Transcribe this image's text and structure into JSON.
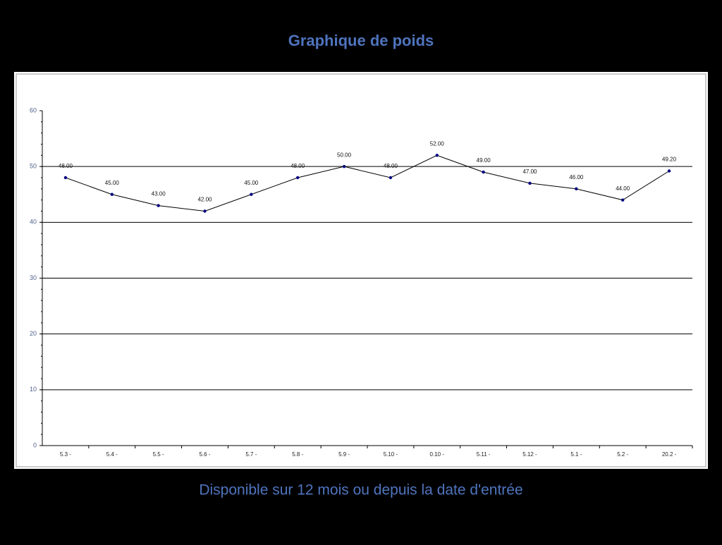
{
  "chart_data": {
    "type": "line",
    "title": "Graphique de poids",
    "subtitle": "Disponible sur 12 mois ou depuis la date d'entrée",
    "categories": [
      "5.3 -",
      "5.4 -",
      "5.5 -",
      "5.6 -",
      "5.7 -",
      "5.8 -",
      "5.9 -",
      "5.10 -",
      "0.10 -",
      "5.11 -",
      "5.12 -",
      "5.1 -",
      "5.2 -",
      "20.2 -"
    ],
    "values": [
      48,
      45,
      43,
      42,
      45,
      48,
      50,
      48,
      52,
      49,
      47,
      46,
      44,
      49.2
    ],
    "value_labels": [
      "48.00",
      "45.00",
      "43.00",
      "42.00",
      "45.00",
      "48.00",
      "50.00",
      "48.00",
      "52.00",
      "49.00",
      "47.00",
      "46.00",
      "44.00",
      "49.20"
    ],
    "color": "#000080",
    "ylim": [
      0,
      60
    ],
    "yticks": [
      0,
      10,
      20,
      30,
      40,
      50,
      60
    ],
    "grid": true
  }
}
